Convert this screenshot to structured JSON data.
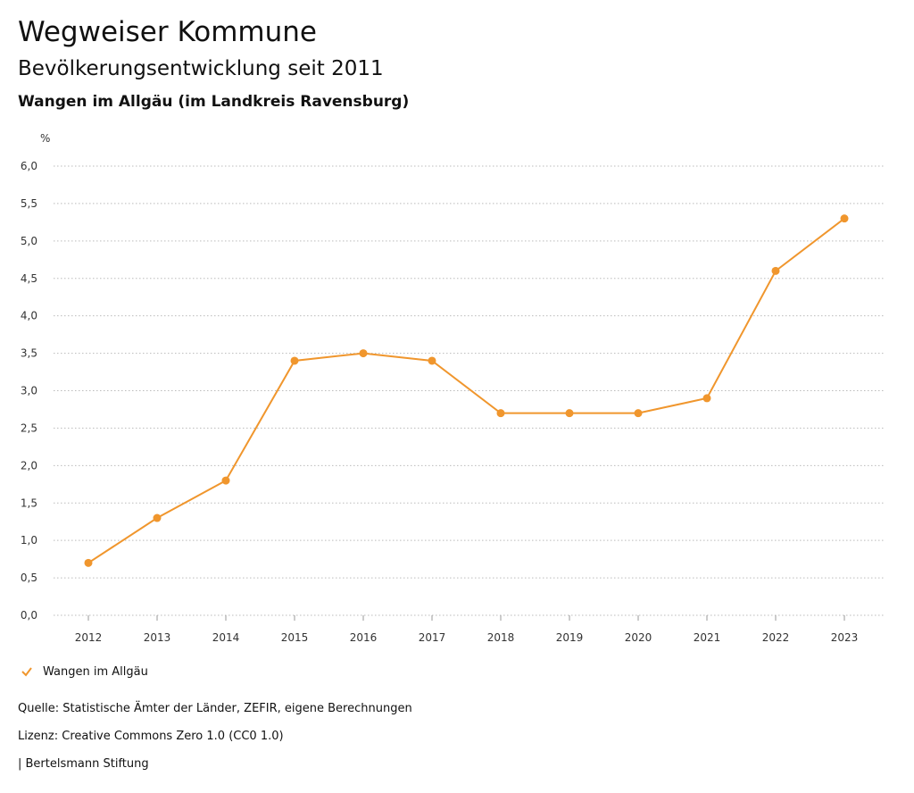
{
  "header": {
    "title": "Wegweiser Kommune",
    "subtitle": "Bevölkerungsentwicklung seit 2011",
    "region": "Wangen im Allgäu (im Landkreis Ravensburg)"
  },
  "chart_data": {
    "type": "line",
    "ylabel": "%",
    "ylim": [
      0,
      6
    ],
    "y_ticks": [
      "0,0",
      "0,5",
      "1,0",
      "1,5",
      "2,0",
      "2,5",
      "3,0",
      "3,5",
      "4,0",
      "4,5",
      "5,0",
      "5,5",
      "6,0"
    ],
    "categories": [
      "2012",
      "2013",
      "2014",
      "2015",
      "2016",
      "2017",
      "2018",
      "2019",
      "2020",
      "2021",
      "2022",
      "2023"
    ],
    "series": [
      {
        "name": "Wangen im Allgäu",
        "values": [
          0.7,
          1.3,
          1.8,
          3.4,
          3.5,
          3.4,
          2.7,
          2.7,
          2.7,
          2.9,
          4.6,
          5.3
        ]
      }
    ],
    "grid": true,
    "legend_position": "bottom-left"
  },
  "colors": {
    "series": "#f0962d",
    "grid": "#bbbbbb"
  },
  "footer": {
    "source": "Quelle: Statistische Ämter der Länder, ZEFIR, eigene Berechnungen",
    "license": "Lizenz: Creative Commons Zero 1.0 (CC0 1.0)",
    "publisher": "| Bertelsmann Stiftung"
  }
}
